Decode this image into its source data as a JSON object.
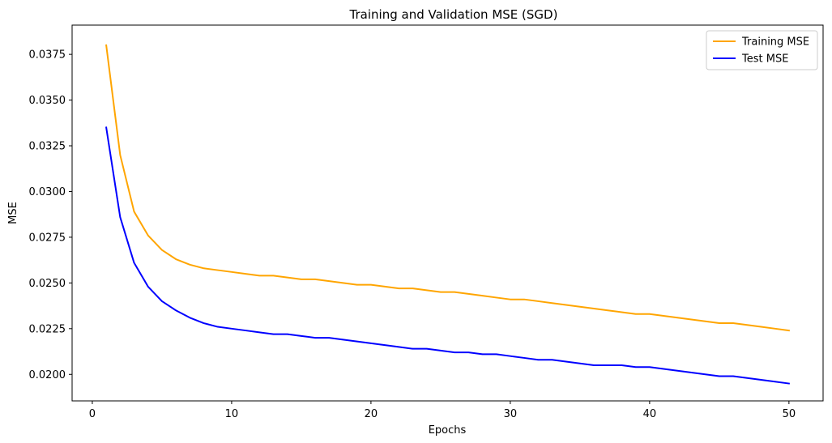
{
  "chart_data": {
    "type": "line",
    "title": "Training and Validation MSE (SGD)",
    "xlabel": "Epochs",
    "ylabel": "MSE",
    "xlim": [
      -1.45,
      52.45
    ],
    "ylim": [
      0.01855,
      0.0391
    ],
    "xticks": [
      0,
      10,
      20,
      30,
      40,
      50
    ],
    "yticks": [
      0.02,
      0.0225,
      0.025,
      0.0275,
      0.03,
      0.0325,
      0.035,
      0.0375
    ],
    "ytick_labels": [
      "0.0200",
      "0.0225",
      "0.0250",
      "0.0275",
      "0.0300",
      "0.0325",
      "0.0350",
      "0.0375"
    ],
    "grid": false,
    "legend_position": "top-right",
    "x": [
      1,
      2,
      3,
      4,
      5,
      6,
      7,
      8,
      9,
      10,
      11,
      12,
      13,
      14,
      15,
      16,
      17,
      18,
      19,
      20,
      21,
      22,
      23,
      24,
      25,
      26,
      27,
      28,
      29,
      30,
      31,
      32,
      33,
      34,
      35,
      36,
      37,
      38,
      39,
      40,
      41,
      42,
      43,
      44,
      45,
      46,
      47,
      48,
      49,
      50
    ],
    "series": [
      {
        "name": "Training MSE",
        "color": "#ffa500",
        "values": [
          0.038,
          0.032,
          0.0289,
          0.0276,
          0.0268,
          0.0263,
          0.026,
          0.0258,
          0.0257,
          0.0256,
          0.0255,
          0.0254,
          0.0254,
          0.0253,
          0.0252,
          0.0252,
          0.0251,
          0.025,
          0.0249,
          0.0249,
          0.0248,
          0.0247,
          0.0247,
          0.0246,
          0.0245,
          0.0245,
          0.0244,
          0.0243,
          0.0242,
          0.0241,
          0.0241,
          0.024,
          0.0239,
          0.0238,
          0.0237,
          0.0236,
          0.0235,
          0.0234,
          0.0233,
          0.0233,
          0.0232,
          0.0231,
          0.023,
          0.0229,
          0.0228,
          0.0228,
          0.0227,
          0.0226,
          0.0225,
          0.0224
        ]
      },
      {
        "name": "Test MSE",
        "color": "#0000ff",
        "values": [
          0.0335,
          0.0286,
          0.0261,
          0.0248,
          0.024,
          0.0235,
          0.0231,
          0.0228,
          0.0226,
          0.0225,
          0.0224,
          0.0223,
          0.0222,
          0.0222,
          0.0221,
          0.022,
          0.022,
          0.0219,
          0.0218,
          0.0217,
          0.0216,
          0.0215,
          0.0214,
          0.0214,
          0.0213,
          0.0212,
          0.0212,
          0.0211,
          0.0211,
          0.021,
          0.0209,
          0.0208,
          0.0208,
          0.0207,
          0.0206,
          0.0205,
          0.0205,
          0.0205,
          0.0204,
          0.0204,
          0.0203,
          0.0202,
          0.0201,
          0.02,
          0.0199,
          0.0199,
          0.0198,
          0.0197,
          0.0196,
          0.0195
        ]
      }
    ]
  }
}
